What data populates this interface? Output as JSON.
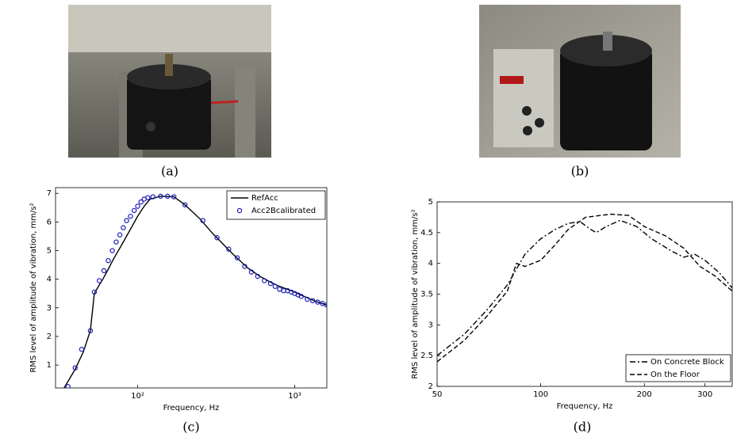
{
  "figure": {
    "captions": [
      "(a)",
      "(b)",
      "(c)",
      "(d)"
    ]
  },
  "chart_data": [
    {
      "type": "line",
      "xlabel": "Frequency, Hz",
      "ylabel": "RMS level of amplitude of vibration, mm/s²",
      "xscale": "log",
      "xlim": [
        30,
        1600
      ],
      "ylim": [
        0.2,
        7.2
      ],
      "xticks": [
        {
          "value": 100,
          "label": "10²"
        },
        {
          "value": 1000,
          "label": "10³"
        }
      ],
      "yticks": [
        1,
        2,
        3,
        4,
        5,
        6,
        7
      ],
      "legend": "upper right",
      "series": [
        {
          "name": "RefAcc",
          "color": "#000000",
          "mark": "line",
          "x": [
            34,
            40,
            45,
            50,
            53,
            57,
            60,
            65,
            70,
            80,
            90,
            100,
            110,
            120,
            140,
            170,
            200,
            250,
            300,
            400,
            500,
            600,
            700,
            800,
            1000,
            1200,
            1400,
            1600
          ],
          "values": [
            0.2,
            0.85,
            1.45,
            2.2,
            3.5,
            3.8,
            4.0,
            4.35,
            4.7,
            5.25,
            5.75,
            6.2,
            6.55,
            6.8,
            6.9,
            6.88,
            6.6,
            6.1,
            5.6,
            4.9,
            4.4,
            4.1,
            3.9,
            3.75,
            3.55,
            3.35,
            3.2,
            3.1
          ]
        },
        {
          "name": "Acc2Bcalibrated",
          "color": "#1a1ab8",
          "mark": "circle",
          "x": [
            36,
            40,
            44,
            50,
            53,
            57,
            61,
            65,
            69,
            73,
            77,
            81,
            85,
            90,
            95,
            100,
            105,
            110,
            116,
            125,
            140,
            155,
            170,
            200,
            260,
            320,
            380,
            430,
            480,
            530,
            580,
            640,
            700,
            750,
            800,
            850,
            900,
            950,
            1000,
            1050,
            1100,
            1200,
            1300,
            1400,
            1500,
            1600
          ],
          "values": [
            0.25,
            0.9,
            1.55,
            2.2,
            3.55,
            3.95,
            4.3,
            4.65,
            5.0,
            5.3,
            5.55,
            5.8,
            6.05,
            6.2,
            6.4,
            6.55,
            6.7,
            6.8,
            6.85,
            6.88,
            6.9,
            6.9,
            6.88,
            6.6,
            6.05,
            5.45,
            5.05,
            4.75,
            4.45,
            4.25,
            4.1,
            3.95,
            3.85,
            3.75,
            3.65,
            3.6,
            3.6,
            3.55,
            3.5,
            3.45,
            3.4,
            3.3,
            3.25,
            3.2,
            3.15,
            3.1
          ]
        }
      ]
    },
    {
      "type": "line",
      "xlabel": "Frequency, Hz",
      "ylabel": "RMS level of amplitude of vibration, mm/s²",
      "xscale": "log",
      "xlim": [
        50,
        360
      ],
      "ylim": [
        2,
        5
      ],
      "xticks": [
        50,
        100,
        200,
        300
      ],
      "yticks": [
        2,
        2.5,
        3,
        3.5,
        4,
        4.5,
        5
      ],
      "legend": "lower right",
      "series": [
        {
          "name": "On Concrete Block",
          "color": "#000000",
          "mark": "line",
          "dash": "dash-dot",
          "x": [
            50,
            60,
            70,
            80,
            90,
            100,
            110,
            120,
            130,
            140,
            145,
            155,
            170,
            190,
            210,
            240,
            260,
            280,
            300,
            330,
            360
          ],
          "values": [
            2.5,
            2.85,
            3.25,
            3.65,
            4.15,
            4.4,
            4.55,
            4.65,
            4.68,
            4.55,
            4.5,
            4.6,
            4.7,
            4.6,
            4.4,
            4.2,
            4.1,
            4.15,
            4.05,
            3.85,
            3.6
          ]
        },
        {
          "name": "On the Floor",
          "color": "#000000",
          "mark": "line",
          "dash": "dashed",
          "x": [
            50,
            60,
            70,
            80,
            85,
            90,
            100,
            110,
            120,
            135,
            160,
            180,
            200,
            230,
            260,
            290,
            320,
            360
          ],
          "values": [
            2.4,
            2.75,
            3.15,
            3.55,
            4.0,
            3.95,
            4.05,
            4.3,
            4.55,
            4.75,
            4.8,
            4.78,
            4.6,
            4.45,
            4.25,
            3.95,
            3.8,
            3.55
          ]
        }
      ]
    }
  ]
}
